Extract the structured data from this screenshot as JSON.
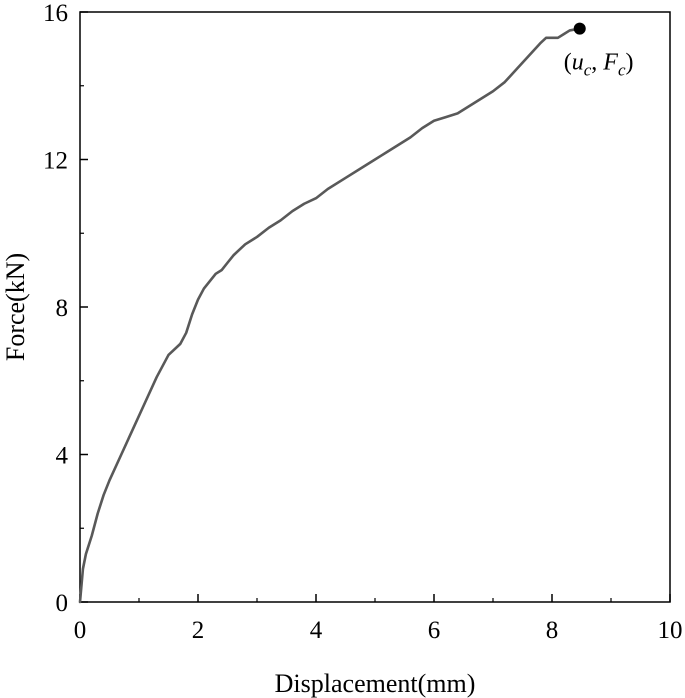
{
  "chart_data": {
    "type": "line",
    "title": "",
    "xlabel": "Displacement(mm)",
    "ylabel": "Force(kN)",
    "xlim": [
      0,
      10
    ],
    "ylim": [
      0,
      16
    ],
    "x_ticks": [
      0,
      2,
      4,
      6,
      8,
      10
    ],
    "y_ticks": [
      0,
      4,
      8,
      12,
      16
    ],
    "grid": false,
    "series": [
      {
        "color": "#595959",
        "x": [
          0,
          0.05,
          0.1,
          0.2,
          0.3,
          0.4,
          0.5,
          0.7,
          0.9,
          1.1,
          1.3,
          1.5,
          1.7,
          1.8,
          1.9,
          2.0,
          2.1,
          2.2,
          2.3,
          2.4,
          2.5,
          2.6,
          2.7,
          2.8,
          3.0,
          3.2,
          3.4,
          3.6,
          3.8,
          4.0,
          4.2,
          4.5,
          4.8,
          5.0,
          5.2,
          5.4,
          5.6,
          5.8,
          6.0,
          6.2,
          6.4,
          6.6,
          6.8,
          7.0,
          7.2,
          7.4,
          7.6,
          7.8,
          7.9,
          8.0,
          8.1,
          8.2,
          8.3,
          8.47
        ],
        "y": [
          0,
          0.9,
          1.3,
          1.8,
          2.4,
          2.9,
          3.3,
          4.0,
          4.7,
          5.4,
          6.1,
          6.7,
          7.0,
          7.3,
          7.8,
          8.2,
          8.5,
          8.7,
          8.9,
          9.0,
          9.2,
          9.4,
          9.55,
          9.7,
          9.9,
          10.15,
          10.35,
          10.6,
          10.8,
          10.95,
          11.2,
          11.5,
          11.8,
          12.0,
          12.2,
          12.4,
          12.6,
          12.85,
          13.05,
          13.15,
          13.25,
          13.45,
          13.65,
          13.85,
          14.1,
          14.45,
          14.8,
          15.15,
          15.3,
          15.3,
          15.3,
          15.4,
          15.5,
          15.55
        ]
      }
    ],
    "points": [
      {
        "x": 8.47,
        "y": 15.55,
        "color": "#000000"
      }
    ],
    "annotations": [
      {
        "text": "(u_c, F_c)",
        "x": 8.47,
        "y": 15.55
      }
    ]
  }
}
